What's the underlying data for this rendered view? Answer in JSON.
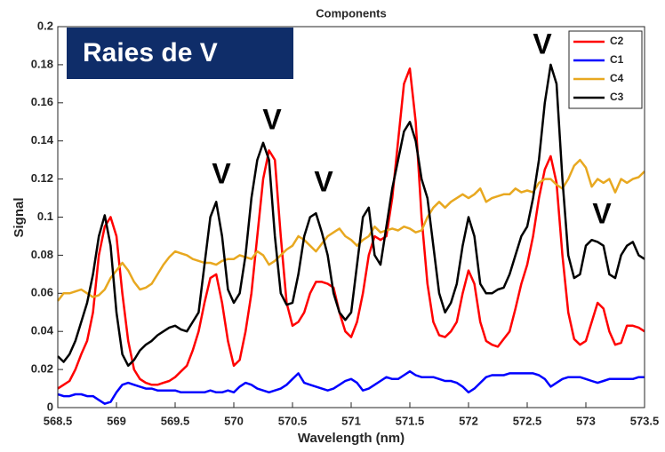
{
  "chart_data": {
    "type": "line",
    "title": "Components",
    "xlabel": "Wavelength (nm)",
    "ylabel": "Signal",
    "annotations": [
      "Raies de V",
      "V",
      "V",
      "V",
      "V",
      "V"
    ],
    "x": [
      568.5,
      568.55,
      568.6,
      568.65,
      568.7,
      568.75,
      568.8,
      568.85,
      568.9,
      568.95,
      569,
      569.05,
      569.1,
      569.15,
      569.2,
      569.25,
      569.3,
      569.35,
      569.4,
      569.45,
      569.5,
      569.55,
      569.6,
      569.65,
      569.7,
      569.75,
      569.8,
      569.85,
      569.9,
      569.95,
      570,
      570.05,
      570.1,
      570.15,
      570.2,
      570.25,
      570.3,
      570.35,
      570.4,
      570.45,
      570.5,
      570.55,
      570.6,
      570.65,
      570.7,
      570.75,
      570.8,
      570.85,
      570.9,
      570.95,
      571,
      571.05,
      571.1,
      571.15,
      571.2,
      571.25,
      571.3,
      571.35,
      571.4,
      571.45,
      571.5,
      571.55,
      571.6,
      571.65,
      571.7,
      571.75,
      571.8,
      571.85,
      571.9,
      571.95,
      572,
      572.05,
      572.1,
      572.15,
      572.2,
      572.25,
      572.3,
      572.35,
      572.4,
      572.45,
      572.5,
      572.55,
      572.6,
      572.65,
      572.7,
      572.75,
      572.8,
      572.85,
      572.9,
      572.95,
      573,
      573.05,
      573.1,
      573.15,
      573.2,
      573.25,
      573.3,
      573.35,
      573.4,
      573.45,
      573.5
    ],
    "series": [
      {
        "name": "C2",
        "color": "#ff0000",
        "values": [
          0.01,
          0.012,
          0.014,
          0.02,
          0.028,
          0.035,
          0.05,
          0.08,
          0.095,
          0.1,
          0.09,
          0.06,
          0.035,
          0.02,
          0.015,
          0.013,
          0.012,
          0.012,
          0.013,
          0.014,
          0.016,
          0.019,
          0.022,
          0.03,
          0.04,
          0.055,
          0.068,
          0.07,
          0.055,
          0.035,
          0.022,
          0.025,
          0.04,
          0.06,
          0.09,
          0.12,
          0.135,
          0.13,
          0.09,
          0.055,
          0.043,
          0.045,
          0.05,
          0.06,
          0.066,
          0.066,
          0.065,
          0.063,
          0.05,
          0.04,
          0.037,
          0.045,
          0.06,
          0.08,
          0.09,
          0.088,
          0.09,
          0.11,
          0.14,
          0.17,
          0.178,
          0.15,
          0.1,
          0.065,
          0.045,
          0.038,
          0.037,
          0.04,
          0.045,
          0.06,
          0.072,
          0.065,
          0.045,
          0.035,
          0.033,
          0.032,
          0.036,
          0.04,
          0.052,
          0.065,
          0.075,
          0.09,
          0.11,
          0.125,
          0.132,
          0.118,
          0.08,
          0.05,
          0.036,
          0.033,
          0.035,
          0.045,
          0.055,
          0.052,
          0.04,
          0.033,
          0.034,
          0.043,
          0.043,
          0.042,
          0.04
        ]
      },
      {
        "name": "C1",
        "color": "#0000ff",
        "values": [
          0.007,
          0.006,
          0.006,
          0.007,
          0.007,
          0.006,
          0.006,
          0.004,
          0.002,
          0.003,
          0.008,
          0.012,
          0.013,
          0.012,
          0.011,
          0.01,
          0.01,
          0.009,
          0.009,
          0.009,
          0.009,
          0.008,
          0.008,
          0.008,
          0.008,
          0.008,
          0.009,
          0.008,
          0.008,
          0.009,
          0.008,
          0.011,
          0.013,
          0.012,
          0.01,
          0.009,
          0.008,
          0.009,
          0.01,
          0.012,
          0.015,
          0.018,
          0.013,
          0.012,
          0.011,
          0.01,
          0.009,
          0.01,
          0.012,
          0.014,
          0.015,
          0.013,
          0.009,
          0.01,
          0.012,
          0.014,
          0.016,
          0.015,
          0.015,
          0.017,
          0.019,
          0.017,
          0.016,
          0.016,
          0.016,
          0.015,
          0.014,
          0.014,
          0.013,
          0.011,
          0.008,
          0.01,
          0.013,
          0.016,
          0.017,
          0.017,
          0.017,
          0.018,
          0.018,
          0.018,
          0.018,
          0.018,
          0.017,
          0.015,
          0.011,
          0.013,
          0.015,
          0.016,
          0.016,
          0.016,
          0.015,
          0.014,
          0.013,
          0.014,
          0.015,
          0.015,
          0.015,
          0.015,
          0.015,
          0.016,
          0.016
        ]
      },
      {
        "name": "C4",
        "color": "#e8a820",
        "values": [
          0.056,
          0.06,
          0.06,
          0.061,
          0.062,
          0.06,
          0.058,
          0.059,
          0.062,
          0.068,
          0.072,
          0.076,
          0.072,
          0.066,
          0.062,
          0.063,
          0.065,
          0.07,
          0.075,
          0.079,
          0.082,
          0.081,
          0.08,
          0.078,
          0.077,
          0.076,
          0.076,
          0.075,
          0.077,
          0.078,
          0.078,
          0.08,
          0.079,
          0.078,
          0.082,
          0.08,
          0.075,
          0.077,
          0.08,
          0.083,
          0.085,
          0.09,
          0.088,
          0.085,
          0.082,
          0.086,
          0.09,
          0.092,
          0.094,
          0.09,
          0.088,
          0.085,
          0.088,
          0.09,
          0.095,
          0.092,
          0.093,
          0.094,
          0.093,
          0.095,
          0.094,
          0.092,
          0.093,
          0.1,
          0.105,
          0.108,
          0.105,
          0.108,
          0.11,
          0.112,
          0.11,
          0.112,
          0.115,
          0.108,
          0.11,
          0.111,
          0.112,
          0.112,
          0.115,
          0.113,
          0.114,
          0.113,
          0.118,
          0.12,
          0.12,
          0.117,
          0.115,
          0.12,
          0.127,
          0.13,
          0.126,
          0.116,
          0.12,
          0.118,
          0.12,
          0.113,
          0.12,
          0.118,
          0.12,
          0.121,
          0.124
        ]
      },
      {
        "name": "C3",
        "color": "#000000",
        "values": [
          0.027,
          0.024,
          0.028,
          0.035,
          0.045,
          0.055,
          0.07,
          0.09,
          0.101,
          0.085,
          0.05,
          0.028,
          0.022,
          0.025,
          0.03,
          0.033,
          0.035,
          0.038,
          0.04,
          0.042,
          0.043,
          0.041,
          0.04,
          0.045,
          0.05,
          0.075,
          0.1,
          0.108,
          0.09,
          0.062,
          0.055,
          0.06,
          0.08,
          0.11,
          0.13,
          0.139,
          0.13,
          0.09,
          0.06,
          0.054,
          0.055,
          0.07,
          0.09,
          0.1,
          0.102,
          0.092,
          0.08,
          0.06,
          0.05,
          0.046,
          0.05,
          0.075,
          0.1,
          0.105,
          0.08,
          0.075,
          0.095,
          0.115,
          0.13,
          0.145,
          0.15,
          0.14,
          0.12,
          0.11,
          0.085,
          0.06,
          0.05,
          0.055,
          0.065,
          0.085,
          0.1,
          0.09,
          0.065,
          0.06,
          0.06,
          0.062,
          0.063,
          0.07,
          0.08,
          0.09,
          0.095,
          0.11,
          0.13,
          0.16,
          0.18,
          0.17,
          0.12,
          0.08,
          0.068,
          0.07,
          0.085,
          0.088,
          0.087,
          0.085,
          0.07,
          0.068,
          0.08,
          0.085,
          0.087,
          0.08,
          0.078
        ]
      }
    ],
    "xlim": [
      568.5,
      573.5
    ],
    "xticks": [
      568.5,
      569,
      569.5,
      570,
      570.5,
      571,
      571.5,
      572,
      572.5,
      573,
      573.5
    ],
    "ylim": [
      0,
      0.2
    ],
    "yticks": [
      0,
      0.02,
      0.04,
      0.06,
      0.08,
      0.1,
      0.12,
      0.14,
      0.16,
      0.18,
      0.2
    ],
    "grid": false,
    "legend": "upper right"
  }
}
